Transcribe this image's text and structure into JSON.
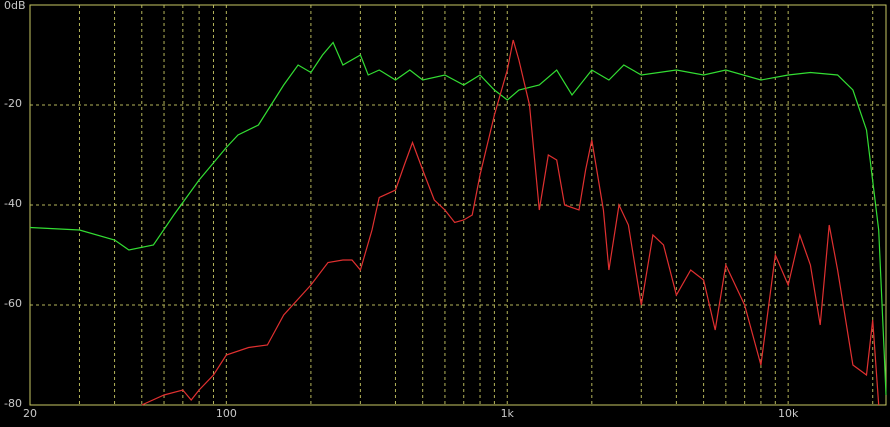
{
  "chart_data": {
    "type": "line",
    "xscale": "log",
    "grid": true,
    "xlim": [
      20,
      22300
    ],
    "ylim": [
      -80,
      0
    ],
    "xticks": [
      20,
      100,
      {
        "value": 1000,
        "label": "1k"
      },
      {
        "value": 10000,
        "label": "10k"
      }
    ],
    "x_minor_ticks": [
      30,
      40,
      50,
      60,
      70,
      80,
      90,
      200,
      300,
      400,
      500,
      600,
      700,
      800,
      900,
      2000,
      3000,
      4000,
      5000,
      6000,
      7000,
      8000,
      9000,
      20000
    ],
    "yticks": [
      {
        "value": 0,
        "label": "0dB"
      },
      -20,
      -40,
      -60,
      -80
    ],
    "series": [
      {
        "color": "#33dd33",
        "x": [
          20,
          30,
          40,
          45,
          55,
          65,
          80,
          100,
          110,
          130,
          160,
          180,
          200,
          220,
          240,
          260,
          300,
          320,
          350,
          400,
          450,
          500,
          600,
          700,
          800,
          900,
          1000,
          1100,
          1300,
          1500,
          1700,
          2000,
          2300,
          2600,
          3000,
          4000,
          5000,
          6000,
          8000,
          10000,
          12000,
          15000,
          17000,
          19000,
          21000,
          22000,
          22300
        ],
        "values": [
          -44.5,
          -45,
          -47,
          -49,
          -48,
          -42,
          -35,
          -28.5,
          -26,
          -24,
          -16,
          -12,
          -13.5,
          -10,
          -7.5,
          -12,
          -10,
          -14,
          -13,
          -15,
          -13,
          -15,
          -14,
          -16,
          -14,
          -17,
          -19,
          -17,
          -16,
          -13,
          -18,
          -13,
          -15,
          -12,
          -14,
          -13,
          -14,
          -13,
          -15,
          -14,
          -13.5,
          -14,
          -17,
          -25,
          -45,
          -70,
          -78
        ]
      },
      {
        "color": "#e03030",
        "x": [
          50,
          60,
          70,
          75,
          80,
          90,
          100,
          120,
          140,
          160,
          200,
          230,
          260,
          280,
          300,
          330,
          350,
          400,
          430,
          460,
          500,
          550,
          600,
          650,
          700,
          750,
          800,
          900,
          1000,
          1050,
          1100,
          1200,
          1300,
          1400,
          1500,
          1600,
          1800,
          1900,
          2000,
          2200,
          2300,
          2500,
          2700,
          3000,
          3300,
          3600,
          4000,
          4500,
          5000,
          5500,
          6000,
          7000,
          8000,
          9000,
          10000,
          11000,
          12000,
          13000,
          14000,
          15000,
          17000,
          19000,
          20000,
          21000
        ],
        "values": [
          -80,
          -78,
          -77,
          -79,
          -77,
          -74,
          -70,
          -68.5,
          -68,
          -62,
          -56,
          -51.5,
          -51,
          -51,
          -53,
          -45,
          -38.5,
          -37,
          -32,
          -27.5,
          -33,
          -39,
          -41,
          -43.5,
          -43,
          -42,
          -34,
          -22,
          -13,
          -7,
          -11,
          -20,
          -41,
          -30,
          -31,
          -40,
          -41,
          -33,
          -27,
          -41,
          -53,
          -40,
          -44,
          -60,
          -46,
          -48,
          -58,
          -53,
          -55,
          -65,
          -52,
          -60,
          -72,
          -50,
          -56,
          -46,
          -52,
          -64,
          -44,
          -53,
          -72,
          -74,
          -63,
          -80
        ]
      }
    ]
  }
}
